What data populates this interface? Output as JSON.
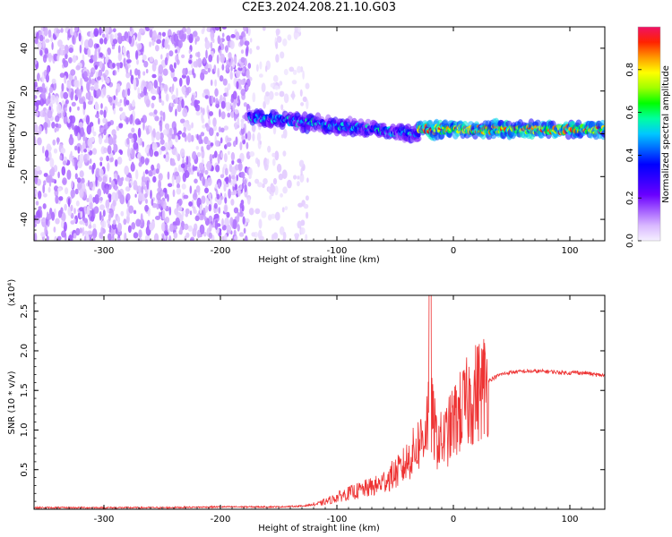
{
  "title": "C2E3.2024.208.21.10.G03",
  "colors": {
    "snr_line": "#ee3333",
    "cmap": [
      "#f5f0ff",
      "#d9b8ff",
      "#a35cff",
      "#6a00ff",
      "#3300ff",
      "#0000ff",
      "#0066ff",
      "#00c8ff",
      "#00ffa0",
      "#00ff00",
      "#a0ff00",
      "#ffff00",
      "#ff9900",
      "#ff2200",
      "#ee1166"
    ]
  },
  "chart_data": [
    {
      "type": "heatmap",
      "title": "C2E3.2024.208.21.10.G03",
      "xlabel": "Height of straight line (km)",
      "ylabel": "Frequency (Hz)",
      "xlim": [
        -360,
        130
      ],
      "ylim": [
        -50,
        50
      ],
      "xticks": [
        "-300",
        "-200",
        "-100",
        "0",
        "100"
      ],
      "xtick_values": [
        -300,
        -200,
        -100,
        0,
        100
      ],
      "yticks": [
        "40",
        "20",
        "0",
        "-20",
        "-40"
      ],
      "ytick_values": [
        40,
        20,
        0,
        -20,
        -40
      ],
      "colorbar": {
        "label": "Normalized spectral amplitude",
        "range": [
          0,
          1
        ],
        "ticks": [
          "0.0",
          "0.2",
          "0.4",
          "0.6",
          "0.8"
        ],
        "tick_values": [
          0.0,
          0.2,
          0.4,
          0.6,
          0.8
        ]
      },
      "regions": [
        {
          "x_range": [
            -360,
            -175
          ],
          "freq_range": [
            -50,
            50
          ],
          "amplitude": [
            0.02,
            0.15
          ],
          "pattern": "scattered noise"
        },
        {
          "x_range": [
            -175,
            -125
          ],
          "freq_range": [
            -50,
            50
          ],
          "amplitude": [
            0.01,
            0.05
          ],
          "pattern": "faint scattered noise"
        },
        {
          "x_range": [
            -175,
            -30
          ],
          "freq_center": [
            8,
            0
          ],
          "amplitude": [
            0.2,
            0.6
          ],
          "pattern": "signal band"
        },
        {
          "x_range": [
            -30,
            130
          ],
          "freq_center": [
            2,
            2
          ],
          "amplitude": [
            0.5,
            0.95
          ],
          "pattern": "signal band"
        }
      ]
    },
    {
      "type": "line",
      "xlabel": "Height of straight line (km)",
      "ylabel": "SNR (10 * v/v)",
      "y_multiplier": "(x10⁴)",
      "xlim": [
        -360,
        130
      ],
      "ylim": [
        0,
        2.7
      ],
      "xticks": [
        "-300",
        "-200",
        "-100",
        "0",
        "100"
      ],
      "xtick_values": [
        -300,
        -200,
        -100,
        0,
        100
      ],
      "yticks": [
        "0.5",
        "1.0",
        "1.5",
        "2.0",
        "2.5"
      ],
      "ytick_values": [
        0.5,
        1.0,
        1.5,
        2.0,
        2.5
      ],
      "series": [
        {
          "x": [
            -360,
            -300,
            -250,
            -200,
            -150,
            -130,
            -115,
            -105,
            -95,
            -85,
            -75,
            -65,
            -55,
            -45,
            -35,
            -25,
            -20,
            -15,
            -10,
            -5,
            0,
            10,
            20,
            30,
            40,
            50,
            60,
            70,
            80,
            90,
            100,
            105,
            110,
            115,
            120,
            130
          ],
          "y": [
            0.02,
            0.02,
            0.02,
            0.03,
            0.03,
            0.04,
            0.07,
            0.12,
            0.18,
            0.22,
            0.26,
            0.3,
            0.4,
            0.5,
            0.7,
            0.95,
            1.3,
            0.9,
            0.85,
            0.95,
            1.1,
            1.3,
            1.48,
            1.62,
            1.7,
            1.73,
            1.74,
            1.74,
            1.74,
            1.73,
            1.72,
            1.73,
            1.72,
            1.72,
            1.7,
            1.69
          ]
        }
      ]
    }
  ]
}
